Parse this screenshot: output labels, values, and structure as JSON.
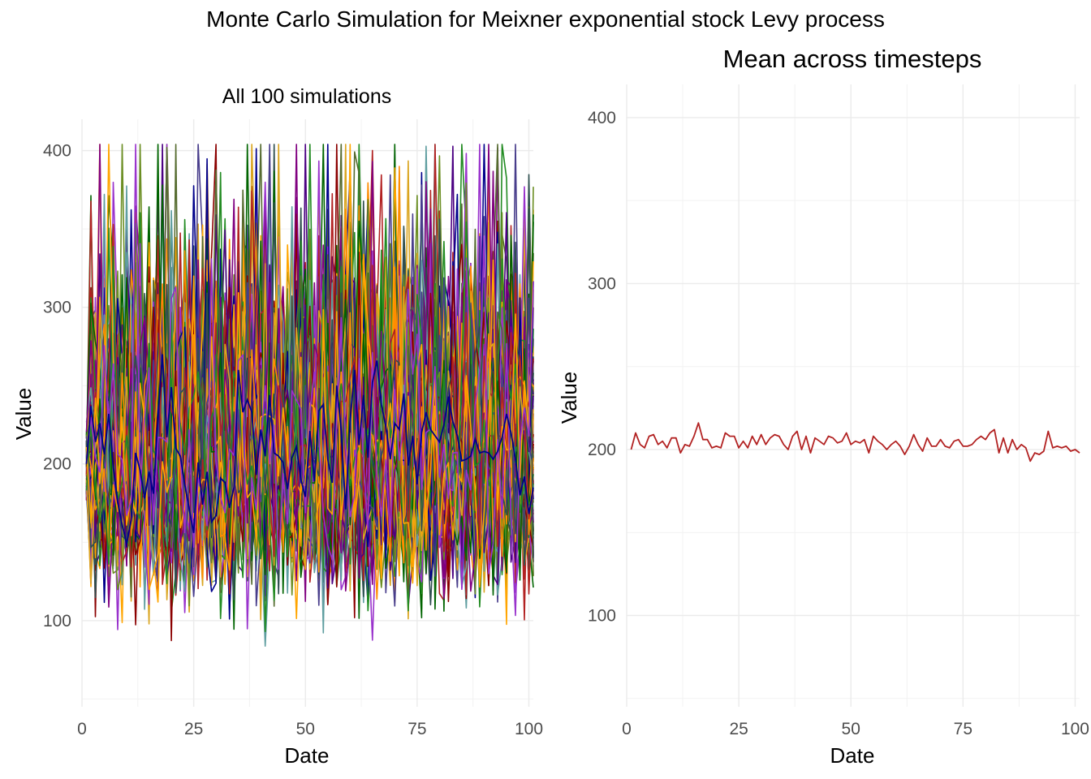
{
  "figure": {
    "title": "Monte Carlo Simulation for Meixner exponential stock Levy process"
  },
  "chart_data": [
    {
      "type": "line",
      "title": "All 100 simulations",
      "xlabel": "Date",
      "ylabel": "Value",
      "xlim": [
        0,
        101
      ],
      "ylim": [
        45,
        420
      ],
      "x_ticks": [
        0,
        25,
        50,
        75,
        100
      ],
      "y_ticks": [
        100,
        200,
        300,
        400
      ],
      "grid": true,
      "legend": "none",
      "n_series": 100,
      "n_steps": 101,
      "start_value": 200,
      "palette": [
        "#b22222",
        "#228b22",
        "#ffa500",
        "#9932cc",
        "#00008b",
        "#6b8e23",
        "#5f9ea0",
        "#8b0000",
        "#4b0082",
        "#556b2f",
        "#daa520",
        "#006400",
        "#800080",
        "#483d8b",
        "#ff8c00",
        "#2f4f4f"
      ],
      "highlight_series": {
        "color": "#00008b",
        "values": [
          200,
          237,
          214,
          226,
          206,
          232,
          198,
          176,
          161,
          149,
          164,
          207,
          196,
          178,
          195,
          181,
          229,
          270,
          217,
          249,
          210,
          205,
          187,
          171,
          156,
          201,
          174,
          195,
          163,
          167,
          191,
          188,
          172,
          185,
          260,
          233,
          241,
          233,
          193,
          222,
          205,
          244,
          207,
          205,
          201,
          184,
          204,
          211,
          190,
          179,
          221,
          189,
          234,
          238,
          203,
          188,
          250,
          221,
          171,
          227,
          260,
          212,
          244,
          204,
          252,
          266,
          238,
          224,
          203,
          226,
          222,
          245,
          199,
          218,
          187,
          220,
          233,
          222,
          218,
          214,
          225,
          243,
          227,
          218,
          202,
          203,
          205,
          216,
          207,
          208,
          207,
          203,
          208,
          217,
          232,
          220,
          203,
          180,
          192,
          168,
          185
        ]
      },
      "extremes": {
        "min": 58,
        "max": 404
      }
    },
    {
      "type": "line",
      "title": "Mean across timesteps",
      "xlabel": "Date",
      "ylabel": "Value",
      "xlim": [
        0,
        101
      ],
      "ylim": [
        45,
        420
      ],
      "x_ticks": [
        0,
        25,
        50,
        75,
        100
      ],
      "y_ticks": [
        100,
        200,
        300,
        400
      ],
      "grid": true,
      "legend": "none",
      "series": [
        {
          "color": "#b22222",
          "x": [
            1,
            2,
            3,
            4,
            5,
            6,
            7,
            8,
            9,
            10,
            11,
            12,
            13,
            14,
            15,
            16,
            17,
            18,
            19,
            20,
            21,
            22,
            23,
            24,
            25,
            26,
            27,
            28,
            29,
            30,
            31,
            32,
            33,
            34,
            35,
            36,
            37,
            38,
            39,
            40,
            41,
            42,
            43,
            44,
            45,
            46,
            47,
            48,
            49,
            50,
            51,
            52,
            53,
            54,
            55,
            56,
            57,
            58,
            59,
            60,
            61,
            62,
            63,
            64,
            65,
            66,
            67,
            68,
            69,
            70,
            71,
            72,
            73,
            74,
            75,
            76,
            77,
            78,
            79,
            80,
            81,
            82,
            83,
            84,
            85,
            86,
            87,
            88,
            89,
            90,
            91,
            92,
            93,
            94,
            95,
            96,
            97,
            98,
            99,
            100,
            101
          ],
          "values": [
            200,
            210,
            203,
            201,
            208,
            209,
            203,
            205,
            201,
            207,
            207,
            198,
            203,
            202,
            208,
            216,
            206,
            206,
            201,
            202,
            201,
            210,
            208,
            208,
            201,
            205,
            201,
            208,
            203,
            209,
            203,
            207,
            209,
            208,
            203,
            200,
            208,
            211,
            200,
            208,
            198,
            207,
            205,
            203,
            208,
            207,
            204,
            205,
            210,
            203,
            205,
            204,
            206,
            198,
            208,
            205,
            203,
            200,
            203,
            205,
            202,
            197,
            202,
            209,
            203,
            199,
            207,
            202,
            202,
            206,
            202,
            201,
            205,
            206,
            202,
            202,
            203,
            206,
            208,
            206,
            210,
            212,
            198,
            207,
            198,
            206,
            200,
            203,
            201,
            193,
            198,
            197,
            199,
            211,
            201,
            202,
            201,
            202,
            199,
            200,
            198
          ]
        }
      ]
    }
  ]
}
